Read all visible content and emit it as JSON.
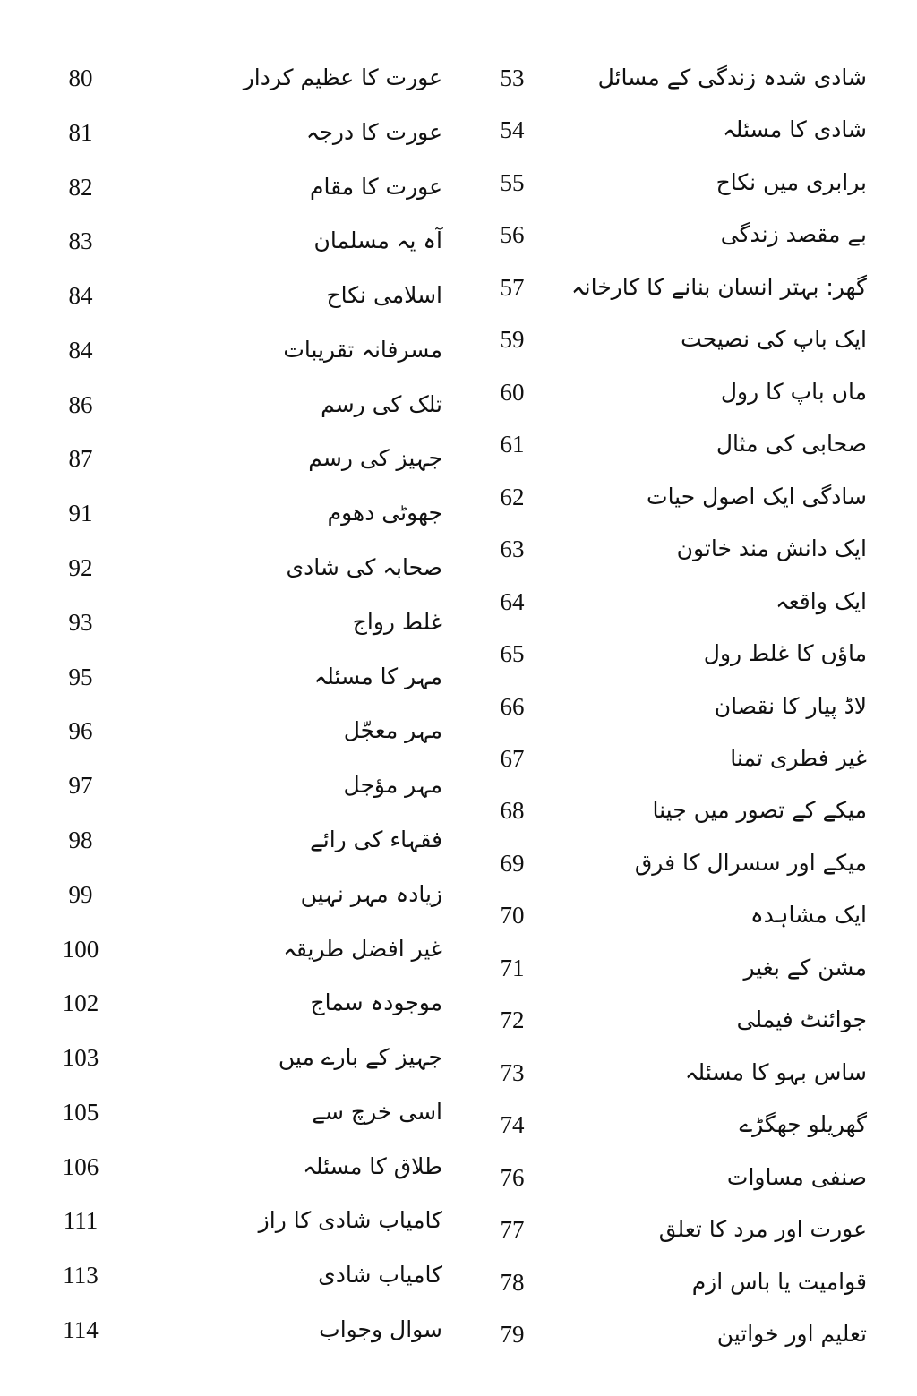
{
  "columns": [
    {
      "entries": [
        {
          "title": "شادی شدہ زندگی کے مسائل",
          "page": 53
        },
        {
          "title": "شادی کا مسئلہ",
          "page": 54
        },
        {
          "title": "برابری میں نکاح",
          "page": 55
        },
        {
          "title": "بے مقصد زندگی",
          "page": 56
        },
        {
          "title": "گھر: بہتر انسان بنانے کا کارخانہ",
          "page": 57
        },
        {
          "title": "ایک باپ کی نصیحت",
          "page": 59
        },
        {
          "title": "ماں باپ کا رول",
          "page": 60
        },
        {
          "title": "صحابی کی مثال",
          "page": 61
        },
        {
          "title": "سادگی ایک اصول حیات",
          "page": 62
        },
        {
          "title": "ایک دانش مند خاتون",
          "page": 63
        },
        {
          "title": "ایک واقعہ",
          "page": 64
        },
        {
          "title": "ماؤں کا غلط رول",
          "page": 65
        },
        {
          "title": "لاڈ پیار کا نقصان",
          "page": 66
        },
        {
          "title": "غیر فطری تمنا",
          "page": 67
        },
        {
          "title": "میکے کے تصور میں جینا",
          "page": 68
        },
        {
          "title": "میکے اور سسرال کا فرق",
          "page": 69
        },
        {
          "title": "ایک مشاہدہ",
          "page": 70
        },
        {
          "title": "مشن کے بغیر",
          "page": 71
        },
        {
          "title": "جوائنٹ فیملی",
          "page": 72
        },
        {
          "title": "ساس بہو کا مسئلہ",
          "page": 73
        },
        {
          "title": "گھریلو جھگڑے",
          "page": 74
        },
        {
          "title": "صنفی مساوات",
          "page": 76
        },
        {
          "title": "عورت اور مرد کا تعلق",
          "page": 77
        },
        {
          "title": "قوامیت یا باس ازم",
          "page": 78
        },
        {
          "title": "تعلیم اور خواتین",
          "page": 79
        }
      ]
    },
    {
      "entries": [
        {
          "title": "عورت کا عظیم کردار",
          "page": 80
        },
        {
          "title": "عورت کا درجہ",
          "page": 81
        },
        {
          "title": "عورت کا مقام",
          "page": 82
        },
        {
          "title": "آہ یہ مسلمان",
          "page": 83
        },
        {
          "title": "اسلامی نکاح",
          "page": 84
        },
        {
          "title": "مسرفانہ تقریبات",
          "page": 84
        },
        {
          "title": "تلک کی رسم",
          "page": 86
        },
        {
          "title": "جہیز کی رسم",
          "page": 87
        },
        {
          "title": "جھوٹی دھوم",
          "page": 91
        },
        {
          "title": "صحابہ کی شادی",
          "page": 92
        },
        {
          "title": "غلط رواج",
          "page": 93
        },
        {
          "title": "مہر کا مسئلہ",
          "page": 95
        },
        {
          "title": "مہر معجّل",
          "page": 96
        },
        {
          "title": "مہر مؤجل",
          "page": 97
        },
        {
          "title": "فقہاء کی رائے",
          "page": 98
        },
        {
          "title": "زیادہ مہر نہیں",
          "page": 99
        },
        {
          "title": "غیر افضل طریقہ",
          "page": 100
        },
        {
          "title": "موجودہ سماج",
          "page": 102
        },
        {
          "title": "جہیز کے بارے میں",
          "page": 103
        },
        {
          "title": "اسی خرچ سے",
          "page": 105
        },
        {
          "title": "طلاق کا مسئلہ",
          "page": 106
        },
        {
          "title": "کامیاب شادی کا راز",
          "page": 111
        },
        {
          "title": "کامیاب شادی",
          "page": 113
        },
        {
          "title": "سوال وجواب",
          "page": 114
        }
      ]
    }
  ]
}
